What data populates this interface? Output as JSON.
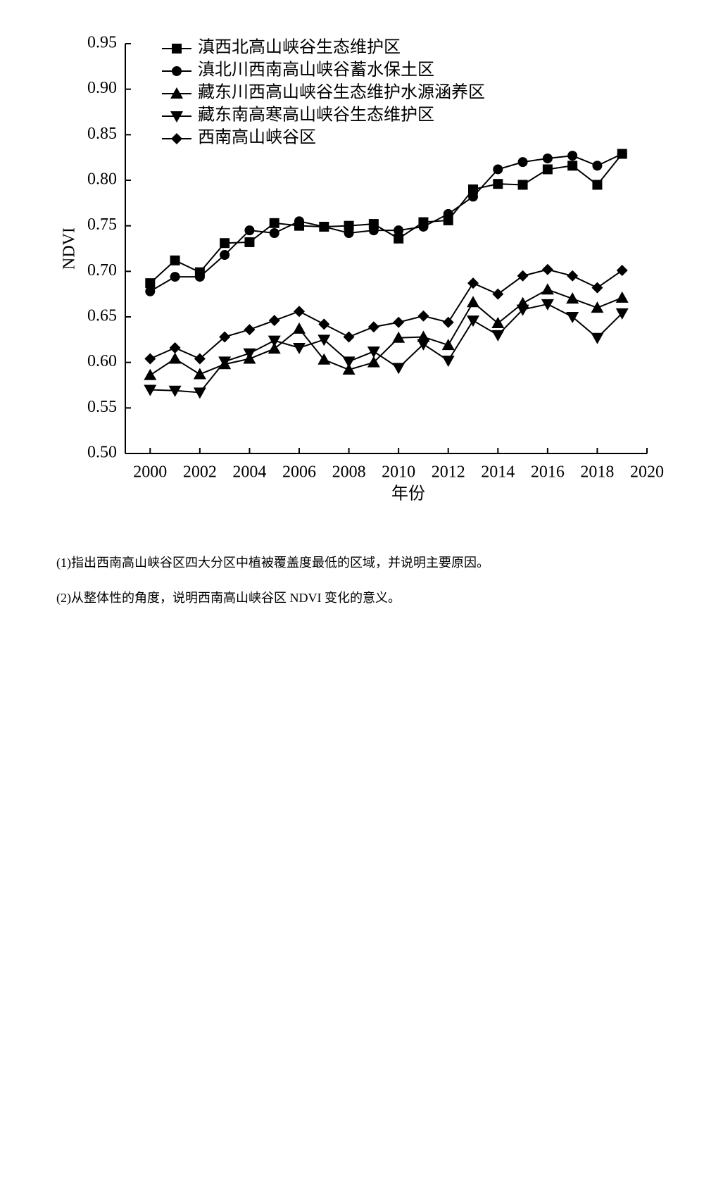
{
  "chart_data": {
    "type": "line",
    "xlabel": "年份",
    "ylabel": "NDVI",
    "x": [
      2000,
      2001,
      2002,
      2003,
      2004,
      2005,
      2006,
      2007,
      2008,
      2009,
      2010,
      2011,
      2012,
      2013,
      2014,
      2015,
      2016,
      2017,
      2018,
      2019
    ],
    "series": [
      {
        "name": "滇西北高山峡谷生态维护区",
        "color": "#000000",
        "marker": "square",
        "values": [
          0.687,
          0.712,
          0.699,
          0.731,
          0.732,
          0.753,
          0.75,
          0.749,
          0.75,
          0.752,
          0.736,
          0.754,
          0.756,
          0.79,
          0.796,
          0.795,
          0.812,
          0.816,
          0.795,
          0.829
        ]
      },
      {
        "name": "滇北川西南高山峡谷蓄水保土区",
        "color": "#000000",
        "marker": "circle",
        "values": [
          0.678,
          0.694,
          0.694,
          0.718,
          0.745,
          0.742,
          0.755,
          0.749,
          0.742,
          0.745,
          0.745,
          0.749,
          0.763,
          0.782,
          0.812,
          0.82,
          0.824,
          0.827,
          0.816,
          0.829
        ]
      },
      {
        "name": "藏东川西高山峡谷生态维护水源涵养区",
        "color": "#000000",
        "marker": "triangle-up",
        "values": [
          0.586,
          0.604,
          0.587,
          0.598,
          0.604,
          0.615,
          0.637,
          0.603,
          0.592,
          0.6,
          0.627,
          0.628,
          0.619,
          0.666,
          0.643,
          0.665,
          0.68,
          0.67,
          0.66,
          0.671
        ]
      },
      {
        "name": "藏东南高寒高山峡谷生态维护区",
        "color": "#000000",
        "marker": "triangle-down",
        "values": [
          0.57,
          0.569,
          0.567,
          0.601,
          0.61,
          0.624,
          0.616,
          0.625,
          0.601,
          0.612,
          0.594,
          0.62,
          0.602,
          0.646,
          0.63,
          0.658,
          0.664,
          0.65,
          0.627,
          0.654
        ]
      },
      {
        "name": "西南高山峡谷区",
        "color": "#000000",
        "marker": "diamond",
        "values": [
          0.604,
          0.616,
          0.604,
          0.628,
          0.636,
          0.646,
          0.656,
          0.642,
          0.628,
          0.639,
          0.644,
          0.651,
          0.644,
          0.687,
          0.675,
          0.695,
          0.702,
          0.695,
          0.682,
          0.701
        ]
      }
    ],
    "xlim": [
      1999,
      2020
    ],
    "xticks": [
      2000,
      2002,
      2004,
      2006,
      2008,
      2010,
      2012,
      2014,
      2016,
      2018,
      2020
    ],
    "ylim": [
      0.5,
      0.95
    ],
    "yticks": [
      {
        "value": 0.5,
        "label": "0.50"
      },
      0.55,
      {
        "value": 0.6,
        "label": "0.60"
      },
      0.65,
      {
        "value": 0.7,
        "label": "0.70"
      },
      0.75,
      {
        "value": 0.8,
        "label": "0.80"
      },
      0.85,
      {
        "value": 0.9,
        "label": "0.90"
      },
      0.95
    ],
    "grid": false,
    "legend": "upper left"
  },
  "questions": [
    "(1)指出西南高山峡谷区四大分区中植被覆盖度最低的区域，并说明主要原因。",
    "(2)从整体性的角度，说明西南高山峡谷区 NDVI 变化的意义。"
  ]
}
